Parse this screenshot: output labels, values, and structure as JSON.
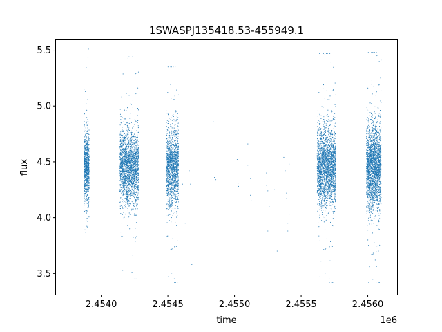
{
  "chart_data": {
    "type": "scatter",
    "title": "1SWASPJ135418.53-455949.1",
    "xlabel": "time",
    "ylabel": "flux",
    "x_offset_label": "1e6",
    "xlim": [
      2.45366,
      2.45622
    ],
    "ylim": [
      3.31,
      5.59
    ],
    "x_ticks": [
      2.454,
      2.4545,
      2.455,
      2.4555,
      2.456
    ],
    "x_tick_labels": [
      "2.4540",
      "2.4545",
      "2.4550",
      "2.4555",
      "2.4560"
    ],
    "y_ticks": [
      3.5,
      4.0,
      4.5,
      5.0,
      5.5
    ],
    "y_tick_labels": [
      "3.5",
      "4.0",
      "4.5",
      "5.0",
      "5.5"
    ],
    "grid": false,
    "marker_color": "#1f77b4",
    "series": [
      {
        "clusters": [
          {
            "x_range": [
              2.45387,
              2.45391
            ],
            "y_center": 4.45,
            "y_spread": 0.16,
            "n": 900,
            "y_min": 3.53,
            "y_max": 5.51
          },
          {
            "x_range": [
              2.45414,
              2.45428
            ],
            "y_center": 4.45,
            "y_spread": 0.16,
            "n": 2200,
            "y_min": 3.45,
            "y_max": 5.44
          },
          {
            "x_range": [
              2.45449,
              2.45458
            ],
            "y_center": 4.45,
            "y_spread": 0.17,
            "n": 1600,
            "y_min": 3.42,
            "y_max": 5.35
          },
          {
            "x_range": [
              2.45562,
              2.45576
            ],
            "y_center": 4.45,
            "y_spread": 0.17,
            "n": 2400,
            "y_min": 3.42,
            "y_max": 5.47
          },
          {
            "x_range": [
              2.45599,
              2.4561
            ],
            "y_center": 4.45,
            "y_spread": 0.18,
            "n": 2400,
            "y_min": 3.42,
            "y_max": 5.48
          }
        ],
        "sparse_points": [
          {
            "x": 2.45461,
            "y": 4.3
          },
          {
            "x": 2.45462,
            "y": 4.05
          },
          {
            "x": 2.45463,
            "y": 3.95
          },
          {
            "x": 2.45466,
            "y": 4.42
          },
          {
            "x": 2.45467,
            "y": 4.3
          },
          {
            "x": 2.45468,
            "y": 3.58
          },
          {
            "x": 2.45484,
            "y": 4.86
          },
          {
            "x": 2.45485,
            "y": 4.36
          },
          {
            "x": 2.45486,
            "y": 4.34
          },
          {
            "x": 2.45502,
            "y": 4.52
          },
          {
            "x": 2.45503,
            "y": 4.28
          },
          {
            "x": 2.45503,
            "y": 4.31
          },
          {
            "x": 2.4551,
            "y": 4.66
          },
          {
            "x": 2.4551,
            "y": 4.47
          },
          {
            "x": 2.45512,
            "y": 4.35
          },
          {
            "x": 2.45512,
            "y": 4.2
          },
          {
            "x": 2.45513,
            "y": 4.15
          },
          {
            "x": 2.45524,
            "y": 4.4
          },
          {
            "x": 2.45524,
            "y": 4.29
          },
          {
            "x": 2.45525,
            "y": 4.24
          },
          {
            "x": 2.45525,
            "y": 3.88
          },
          {
            "x": 2.45526,
            "y": 4.1
          },
          {
            "x": 2.4553,
            "y": 4.25
          },
          {
            "x": 2.45532,
            "y": 3.7
          },
          {
            "x": 2.45537,
            "y": 4.54
          },
          {
            "x": 2.45538,
            "y": 4.42
          },
          {
            "x": 2.45539,
            "y": 4.22
          },
          {
            "x": 2.45539,
            "y": 4.17
          },
          {
            "x": 2.4554,
            "y": 3.95
          },
          {
            "x": 2.4554,
            "y": 3.88
          },
          {
            "x": 2.45541,
            "y": 4.48
          },
          {
            "x": 2.45541,
            "y": 4.03
          }
        ]
      }
    ]
  }
}
